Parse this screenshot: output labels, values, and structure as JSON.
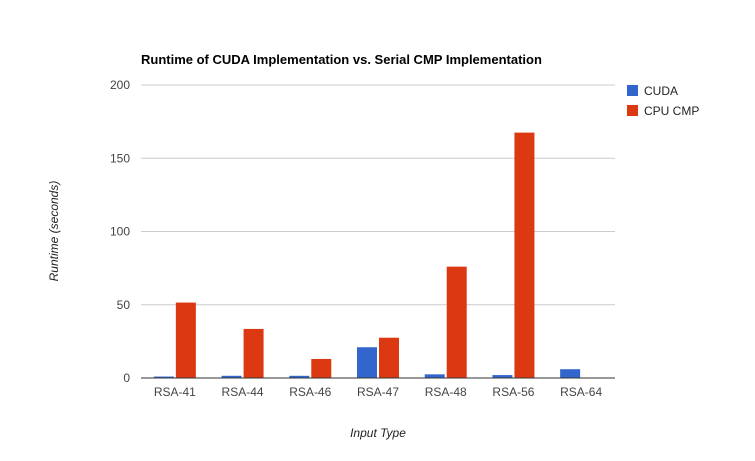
{
  "chart_data": {
    "type": "bar",
    "title": "Runtime of CUDA Implementation vs. Serial CMP Implementation",
    "xlabel": "Input Type",
    "ylabel": "Runtime (seconds)",
    "ylim": [
      0,
      200
    ],
    "yticks": [
      0,
      50,
      100,
      150,
      200
    ],
    "grid": true,
    "legend_position": "right",
    "categories": [
      "RSA-41",
      "RSA-44",
      "RSA-46",
      "RSA-47",
      "RSA-48",
      "RSA-56",
      "RSA-64"
    ],
    "series": [
      {
        "name": "CUDA",
        "color": "#3366cc",
        "values": [
          1,
          1.5,
          1.5,
          21,
          2.5,
          2,
          6
        ]
      },
      {
        "name": "CPU CMP",
        "color": "#dc3912",
        "values": [
          51.5,
          33.5,
          13,
          27.5,
          76,
          167.5,
          null
        ]
      }
    ]
  }
}
